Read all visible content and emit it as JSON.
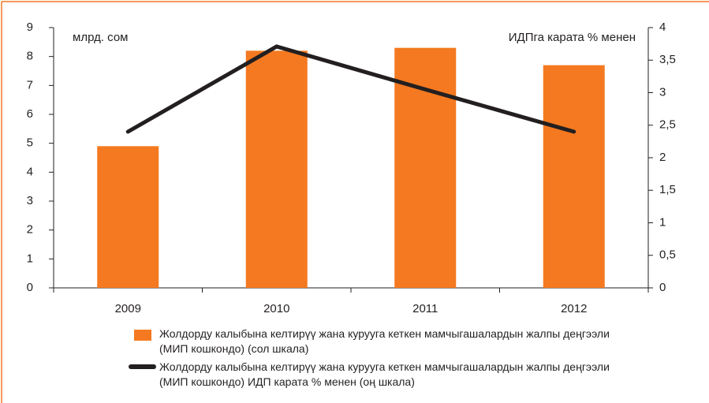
{
  "chart_data": {
    "type": "bar+line",
    "categories": [
      "2009",
      "2010",
      "2011",
      "2012"
    ],
    "series": [
      {
        "name": "Жолдорду калыбына келтирүү жана курууга кеткен мамчыгашалардын жалпы деңгээли (МИП кошкондо) (сол шкала)",
        "type": "bar",
        "color": "#f47920",
        "axis": "y",
        "values": [
          4.9,
          8.2,
          8.3,
          7.7
        ]
      },
      {
        "name": "Жолдорду калыбына келтирүү жана курууга кеткен мамчыгашалардын жалпы деңгээли (МИП кошкондо) ИДП карата % менен (оң шкала)",
        "type": "line",
        "color": "#231f20",
        "axis": "y2",
        "values": [
          2.4,
          3.71,
          3.05,
          2.4
        ]
      }
    ],
    "y_axis_label": "млрд. сом",
    "y2_axis_label": "ИДПга карата % менен",
    "ylim": [
      0,
      9
    ],
    "yticks": [
      0,
      1,
      2,
      3,
      4,
      5,
      6,
      7,
      8,
      9
    ],
    "y2lim": [
      0,
      4
    ],
    "y2ticks": [
      0,
      {
        "value": 0.5,
        "label": "0,5"
      },
      1,
      {
        "value": 1.5,
        "label": "1,5"
      },
      2,
      {
        "value": 2.5,
        "label": "2,5"
      },
      3,
      {
        "value": 3.5,
        "label": "3,5"
      },
      4
    ],
    "legend": "bottom"
  }
}
